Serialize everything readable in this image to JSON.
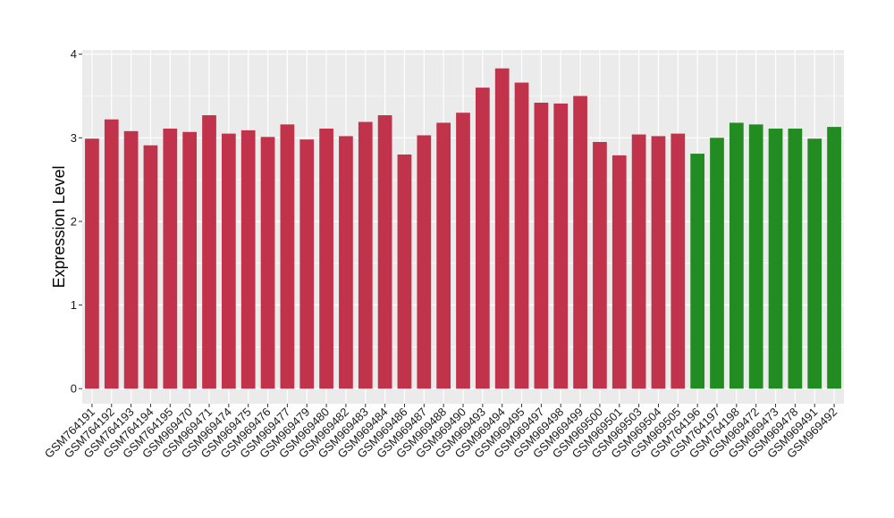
{
  "chart_data": {
    "type": "bar",
    "ylabel": "Expression Level",
    "xlabel": "",
    "ylim": [
      -0.18,
      4.05
    ],
    "yticks": [
      0,
      1,
      2,
      3,
      4
    ],
    "grid": true,
    "colors": {
      "group_a": "#C0334A",
      "group_b": "#228B22",
      "panel": "#EBEBEB",
      "grid": "#FFFFFF"
    },
    "categories": [
      "GSM764191",
      "GSM764192",
      "GSM764193",
      "GSM764194",
      "GSM764195",
      "GSM969470",
      "GSM969471",
      "GSM969474",
      "GSM969475",
      "GSM969476",
      "GSM969477",
      "GSM969479",
      "GSM969480",
      "GSM969482",
      "GSM969483",
      "GSM969484",
      "GSM969486",
      "GSM969487",
      "GSM969488",
      "GSM969490",
      "GSM969493",
      "GSM969494",
      "GSM969495",
      "GSM969497",
      "GSM969498",
      "GSM969499",
      "GSM969500",
      "GSM969501",
      "GSM969503",
      "GSM969504",
      "GSM969505",
      "GSM764196",
      "GSM764197",
      "GSM764198",
      "GSM969472",
      "GSM969473",
      "GSM969478",
      "GSM969491",
      "GSM969492"
    ],
    "values": [
      2.99,
      3.22,
      3.08,
      2.91,
      3.11,
      3.07,
      3.27,
      3.05,
      3.09,
      3.01,
      3.16,
      2.98,
      3.11,
      3.02,
      3.19,
      3.27,
      2.8,
      3.03,
      3.18,
      3.3,
      3.6,
      3.83,
      3.66,
      3.42,
      3.41,
      3.5,
      2.95,
      2.79,
      3.04,
      3.02,
      3.05,
      2.81,
      3.0,
      3.18,
      3.16,
      3.11,
      3.11,
      2.99,
      3.13
    ],
    "groups": [
      "a",
      "a",
      "a",
      "a",
      "a",
      "a",
      "a",
      "a",
      "a",
      "a",
      "a",
      "a",
      "a",
      "a",
      "a",
      "a",
      "a",
      "a",
      "a",
      "a",
      "a",
      "a",
      "a",
      "a",
      "a",
      "a",
      "a",
      "a",
      "a",
      "a",
      "a",
      "b",
      "b",
      "b",
      "b",
      "b",
      "b",
      "b",
      "b"
    ]
  }
}
